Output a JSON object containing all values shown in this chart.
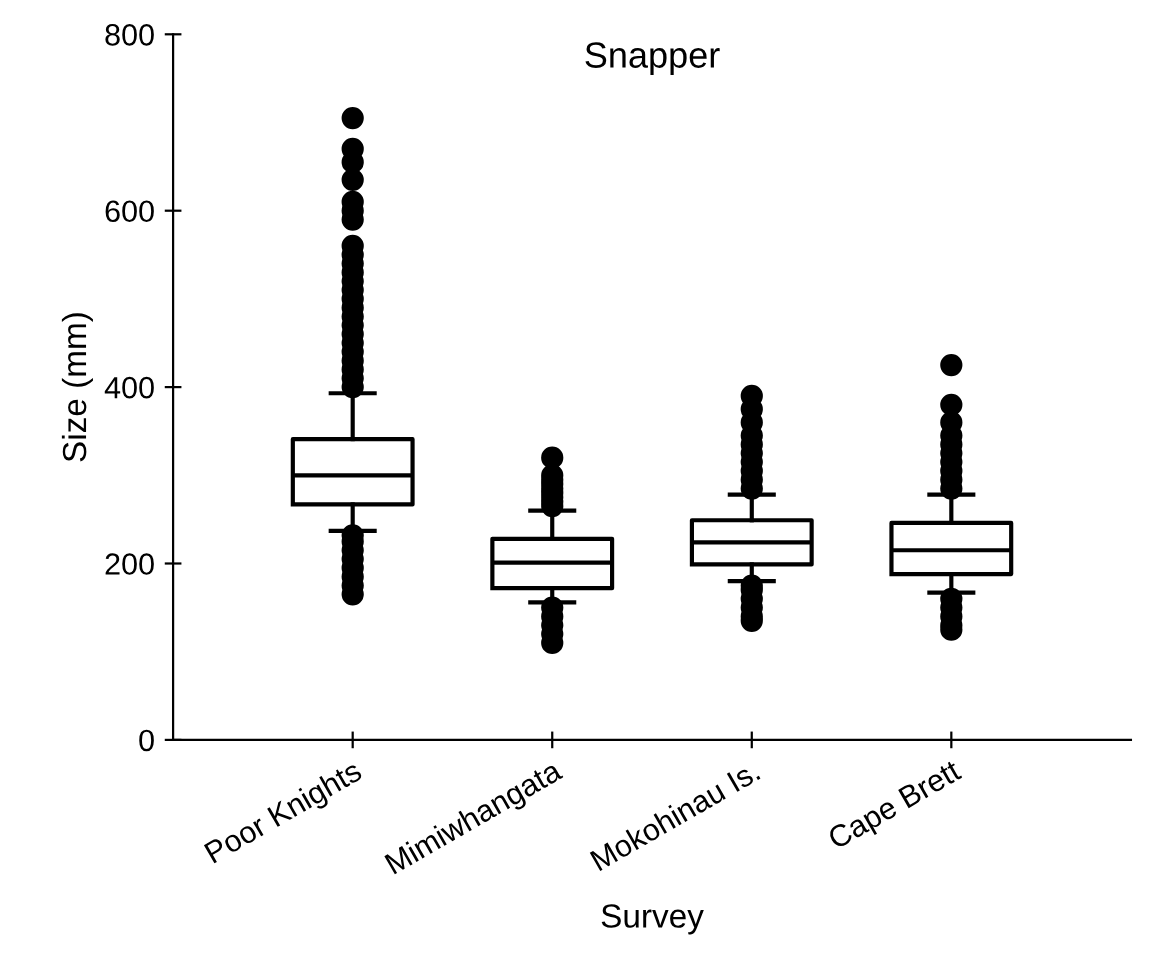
{
  "chart_data": {
    "type": "box",
    "title": "Snapper",
    "xlabel": "Survey",
    "ylabel": "Size (mm)",
    "categories": [
      "Poor Knights",
      "Mimiwhangata",
      "Mokohinau Is.",
      "Cape Brett"
    ],
    "boxes": [
      {
        "low": 237,
        "q1": 267,
        "median": 300,
        "q3": 341,
        "high": 393,
        "outliers": [
          165,
          175,
          185,
          195,
          205,
          215,
          225,
          232,
          400,
          410,
          420,
          430,
          440,
          450,
          460,
          470,
          480,
          490,
          500,
          510,
          520,
          530,
          540,
          550,
          560,
          590,
          600,
          610,
          635,
          655,
          670,
          705
        ]
      },
      {
        "low": 156,
        "q1": 172,
        "median": 201,
        "q3": 228,
        "high": 260,
        "outliers": [
          110,
          120,
          130,
          140,
          150,
          265,
          270,
          275,
          280,
          285,
          290,
          295,
          300,
          320
        ]
      },
      {
        "low": 180,
        "q1": 199,
        "median": 224,
        "q3": 249,
        "high": 278,
        "outliers": [
          135,
          140,
          150,
          160,
          170,
          175,
          285,
          295,
          305,
          315,
          325,
          335,
          345,
          360,
          375,
          390
        ]
      },
      {
        "low": 167,
        "q1": 188,
        "median": 215,
        "q3": 246,
        "high": 278,
        "outliers": [
          125,
          130,
          140,
          150,
          160,
          285,
          295,
          305,
          315,
          325,
          335,
          345,
          360,
          380,
          425
        ]
      }
    ],
    "ylim": [
      0,
      800
    ],
    "yticks": [
      0,
      200,
      400,
      600,
      800
    ],
    "grid": false,
    "legend": false
  }
}
